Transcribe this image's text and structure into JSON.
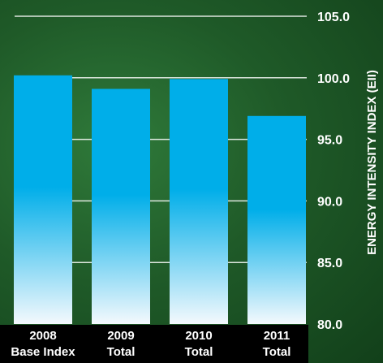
{
  "chart_data": {
    "type": "bar",
    "categories": [
      [
        "2008",
        "Base Index"
      ],
      [
        "2009",
        "Total"
      ],
      [
        "2010",
        "Total"
      ],
      [
        "2011",
        "Total"
      ]
    ],
    "values": [
      100.2,
      99.1,
      99.9,
      96.9
    ],
    "title": "",
    "xlabel": "",
    "ylabel": "ENERGY INTENSITY INDEX (EII)",
    "ylim": [
      80,
      105
    ],
    "yticks": [
      "80.0",
      "85.0",
      "90.0",
      "95.0",
      "100.0",
      "105.0"
    ],
    "y_axis_position": "right",
    "grid": true,
    "legend": "none"
  },
  "colors": {
    "bar_top": "#00aee9",
    "bar_bottom": "#f4f9fd",
    "gridline": "#ffffff",
    "label_band": "#000000"
  }
}
